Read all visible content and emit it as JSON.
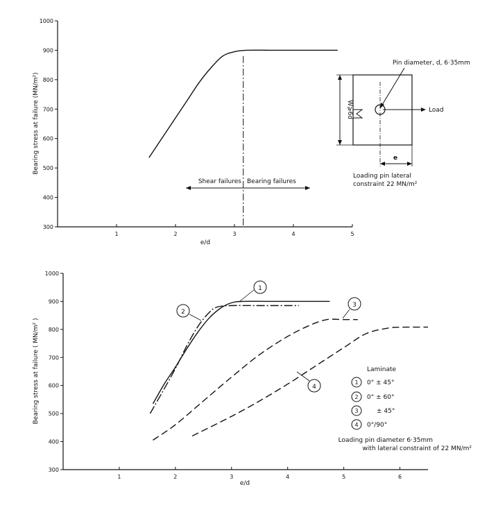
{
  "chart_data": [
    {
      "type": "line",
      "xlabel": "e/d",
      "ylabel": "Bearing stress at failure (MN/m²)",
      "xlim": [
        0,
        5
      ],
      "ylim": [
        300,
        1000
      ],
      "xticks": [
        "1",
        "2",
        "3",
        "4",
        "5"
      ],
      "yticks": [
        "300",
        "400",
        "500",
        "600",
        "700",
        "800",
        "900",
        "1000"
      ],
      "grid": false,
      "series": [
        {
          "x": [
            1.55,
            1.8,
            2.0,
            2.2,
            2.4,
            2.6,
            2.8,
            3.0,
            3.2,
            3.6,
            4.0,
            4.4,
            4.75
          ],
          "y": [
            535,
            610,
            670,
            730,
            790,
            840,
            880,
            895,
            900,
            900,
            900,
            900,
            900
          ]
        }
      ],
      "divider": {
        "x": 3.15,
        "y_top": 880
      },
      "annotations": {
        "shear": "Shear failures",
        "bearing": "Bearing failures",
        "pin": "Pin diameter, d, 6·35mm",
        "load": "Load",
        "width": "W⩾6d",
        "e": "e",
        "constraint_1": "Loading pin lateral",
        "constraint_2": "constraint 22 MN/m²"
      }
    },
    {
      "type": "line",
      "xlabel": "e/d",
      "ylabel": "Bearing stress at failure ( MN/m² )",
      "xlim": [
        0,
        6.5
      ],
      "ylim": [
        300,
        1000
      ],
      "xticks": [
        "1",
        "2",
        "3",
        "4",
        "5",
        "6"
      ],
      "yticks": [
        "300",
        "400",
        "500",
        "600",
        "700",
        "800",
        "900",
        "1000"
      ],
      "grid": false,
      "legend_title": "Laminate",
      "legend_position": "right",
      "series": [
        {
          "name": "0° ± 45°",
          "marker": "1",
          "style": "solid",
          "x": [
            1.6,
            1.8,
            2.0,
            2.2,
            2.4,
            2.6,
            2.8,
            3.0,
            3.2,
            3.6,
            4.0,
            4.4,
            4.75
          ],
          "y": [
            535,
            605,
            665,
            730,
            790,
            840,
            875,
            895,
            900,
            900,
            900,
            900,
            900
          ]
        },
        {
          "name": "0° ± 60°",
          "marker": "2",
          "style": "dashdot",
          "x": [
            1.55,
            1.75,
            2.0,
            2.2,
            2.4,
            2.6,
            2.75,
            3.0,
            3.4,
            3.8,
            4.2
          ],
          "y": [
            500,
            570,
            660,
            740,
            810,
            860,
            880,
            885,
            885,
            885,
            885
          ]
        },
        {
          "name": "± 45°",
          "marker": "3",
          "style": "dashed",
          "x": [
            1.6,
            2.0,
            2.5,
            3.0,
            3.5,
            4.0,
            4.4,
            4.7,
            5.0,
            5.25
          ],
          "y": [
            405,
            460,
            545,
            630,
            710,
            775,
            815,
            835,
            835,
            835
          ]
        },
        {
          "name": "0°/90°",
          "marker": "4",
          "style": "dashed",
          "x": [
            2.3,
            3.0,
            3.5,
            4.0,
            4.5,
            5.0,
            5.4,
            5.8,
            6.1,
            6.5
          ],
          "y": [
            420,
            490,
            545,
            605,
            670,
            735,
            785,
            805,
            808,
            808
          ]
        }
      ],
      "annotations": {
        "note_1": "Loading pin diameter 6·35mm",
        "note_2": "with lateral constraint of 22 MN/m²"
      }
    }
  ]
}
